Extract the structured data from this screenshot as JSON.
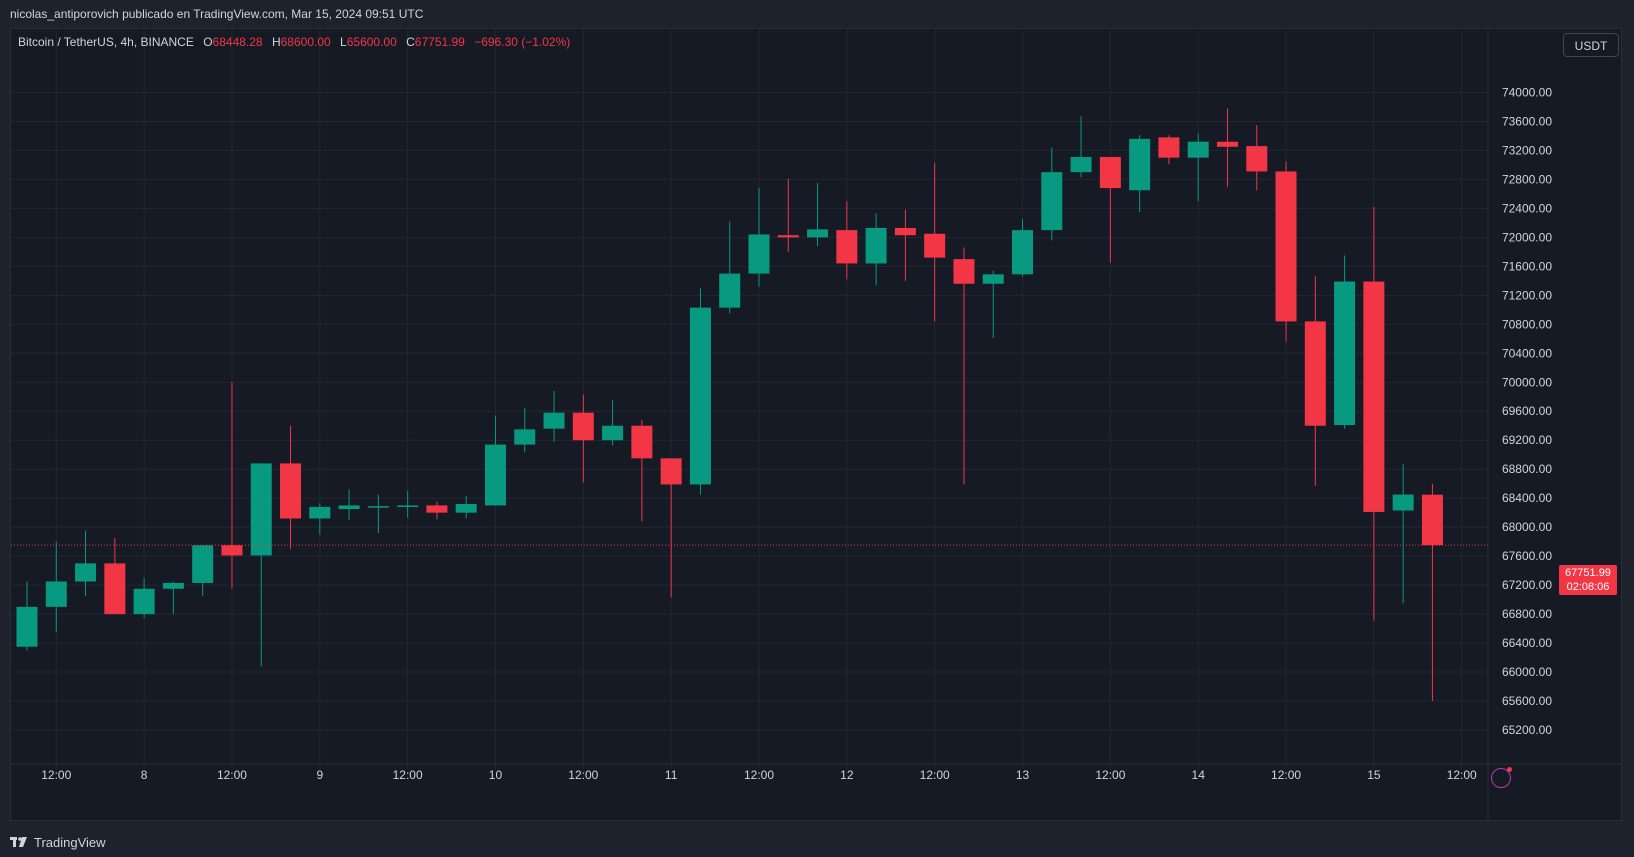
{
  "header": {
    "publish_line": "nicolas_antiporovich publicado en TradingView.com, Mar 15, 2024 09:51 UTC"
  },
  "legend": {
    "symbol": "Bitcoin / TetherUS, 4h, BINANCE",
    "open_label": "O",
    "open": "68448.28",
    "high_label": "H",
    "high": "68600.00",
    "low_label": "L",
    "low": "65600.00",
    "close_label": "C",
    "close": "67751.99",
    "change": "−696.30 (−1.02%)"
  },
  "currency_button": "USDT",
  "last_price": {
    "value": "67751.99",
    "countdown": "02:08:06"
  },
  "footer": {
    "brand": "TradingView"
  },
  "colors": {
    "up": "#089981",
    "down": "#f23645",
    "background": "#161a25",
    "grid": "#232733",
    "text": "#d1d4dc"
  },
  "chart_data": {
    "type": "candlestick",
    "ylim": [
      64800,
      74600
    ],
    "y_ticks": [
      65200,
      65600,
      66000,
      66400,
      66800,
      67200,
      67600,
      68000,
      68400,
      68800,
      69200,
      69600,
      70000,
      70400,
      70800,
      71200,
      71600,
      72000,
      72400,
      72800,
      73200,
      73600,
      74000
    ],
    "y_tick_labels": [
      "65200.00",
      "65600.00",
      "66000.00",
      "66400.00",
      "66800.00",
      "67200.00",
      "67600.00",
      "68000.00",
      "68400.00",
      "68800.00",
      "69200.00",
      "69600.00",
      "70000.00",
      "70400.00",
      "70800.00",
      "71200.00",
      "71600.00",
      "72000.00",
      "72400.00",
      "72800.00",
      "73200.00",
      "73600.00",
      "74000.00"
    ],
    "x_tick_labels": [
      {
        "bar": 1,
        "label": "12:00"
      },
      {
        "bar": 4,
        "label": "8"
      },
      {
        "bar": 7,
        "label": "12:00"
      },
      {
        "bar": 10,
        "label": "9"
      },
      {
        "bar": 13,
        "label": "12:00"
      },
      {
        "bar": 16,
        "label": "10"
      },
      {
        "bar": 19,
        "label": "12:00"
      },
      {
        "bar": 22,
        "label": "11"
      },
      {
        "bar": 25,
        "label": "12:00"
      },
      {
        "bar": 28,
        "label": "12"
      },
      {
        "bar": 31,
        "label": "12:00"
      },
      {
        "bar": 34,
        "label": "13"
      },
      {
        "bar": 37,
        "label": "12:00"
      },
      {
        "bar": 40,
        "label": "14"
      },
      {
        "bar": 43,
        "label": "12:00"
      },
      {
        "bar": 46,
        "label": "15"
      },
      {
        "bar": 49,
        "label": "12:00"
      }
    ],
    "ohlc": [
      [
        66350,
        67250,
        66300,
        66900
      ],
      [
        66900,
        67800,
        66550,
        67250
      ],
      [
        67250,
        67950,
        67050,
        67500
      ],
      [
        67500,
        67850,
        66800,
        66800
      ],
      [
        66800,
        67300,
        66750,
        67150
      ],
      [
        67150,
        67250,
        66800,
        67230
      ],
      [
        67230,
        67750,
        67050,
        67750
      ],
      [
        67750,
        70000,
        67150,
        67610
      ],
      [
        67610,
        68880,
        66080,
        68880
      ],
      [
        68880,
        69400,
        67700,
        68120
      ],
      [
        68120,
        68330,
        67900,
        68280
      ],
      [
        68250,
        68520,
        68100,
        68300
      ],
      [
        68290,
        68450,
        67920,
        68290
      ],
      [
        68300,
        68500,
        68130,
        68300
      ],
      [
        68300,
        68350,
        68110,
        68200
      ],
      [
        68200,
        68430,
        68120,
        68320
      ],
      [
        68300,
        69540,
        68300,
        69140
      ],
      [
        69140,
        69650,
        69030,
        69350
      ],
      [
        69360,
        69880,
        69180,
        69580
      ],
      [
        69580,
        69830,
        68620,
        69200
      ],
      [
        69200,
        69750,
        69130,
        69400
      ],
      [
        69400,
        69480,
        68080,
        68950
      ],
      [
        68950,
        68950,
        67030,
        68590
      ],
      [
        68590,
        71300,
        68450,
        71030
      ],
      [
        71030,
        72220,
        70950,
        71500
      ],
      [
        71500,
        72680,
        71320,
        72040
      ],
      [
        72030,
        72810,
        71800,
        72000
      ],
      [
        72000,
        72750,
        71880,
        72110
      ],
      [
        72100,
        72500,
        71420,
        71640
      ],
      [
        71640,
        72330,
        71340,
        72130
      ],
      [
        72130,
        72380,
        71400,
        72030
      ],
      [
        72050,
        73030,
        70840,
        71720
      ],
      [
        71700,
        71860,
        68590,
        71360
      ],
      [
        71360,
        71540,
        70610,
        71490
      ],
      [
        71490,
        72250,
        71460,
        72100
      ],
      [
        72100,
        73240,
        71960,
        72900
      ],
      [
        72900,
        73670,
        72830,
        73110
      ],
      [
        73110,
        73110,
        71650,
        72680
      ],
      [
        72650,
        73410,
        72350,
        73360
      ],
      [
        73380,
        73410,
        73010,
        73100
      ],
      [
        73100,
        73430,
        72500,
        73320
      ],
      [
        73320,
        73780,
        72700,
        73250
      ],
      [
        73260,
        73550,
        72650,
        72910
      ],
      [
        72910,
        73050,
        70560,
        70840
      ],
      [
        70840,
        71470,
        68570,
        69400
      ],
      [
        69410,
        71750,
        69360,
        71390
      ],
      [
        71390,
        72420,
        66710,
        68210
      ],
      [
        68230,
        68870,
        66950,
        68450
      ],
      [
        68448.28,
        68600,
        65600,
        67751.99
      ]
    ],
    "last_price": 67751.99
  }
}
